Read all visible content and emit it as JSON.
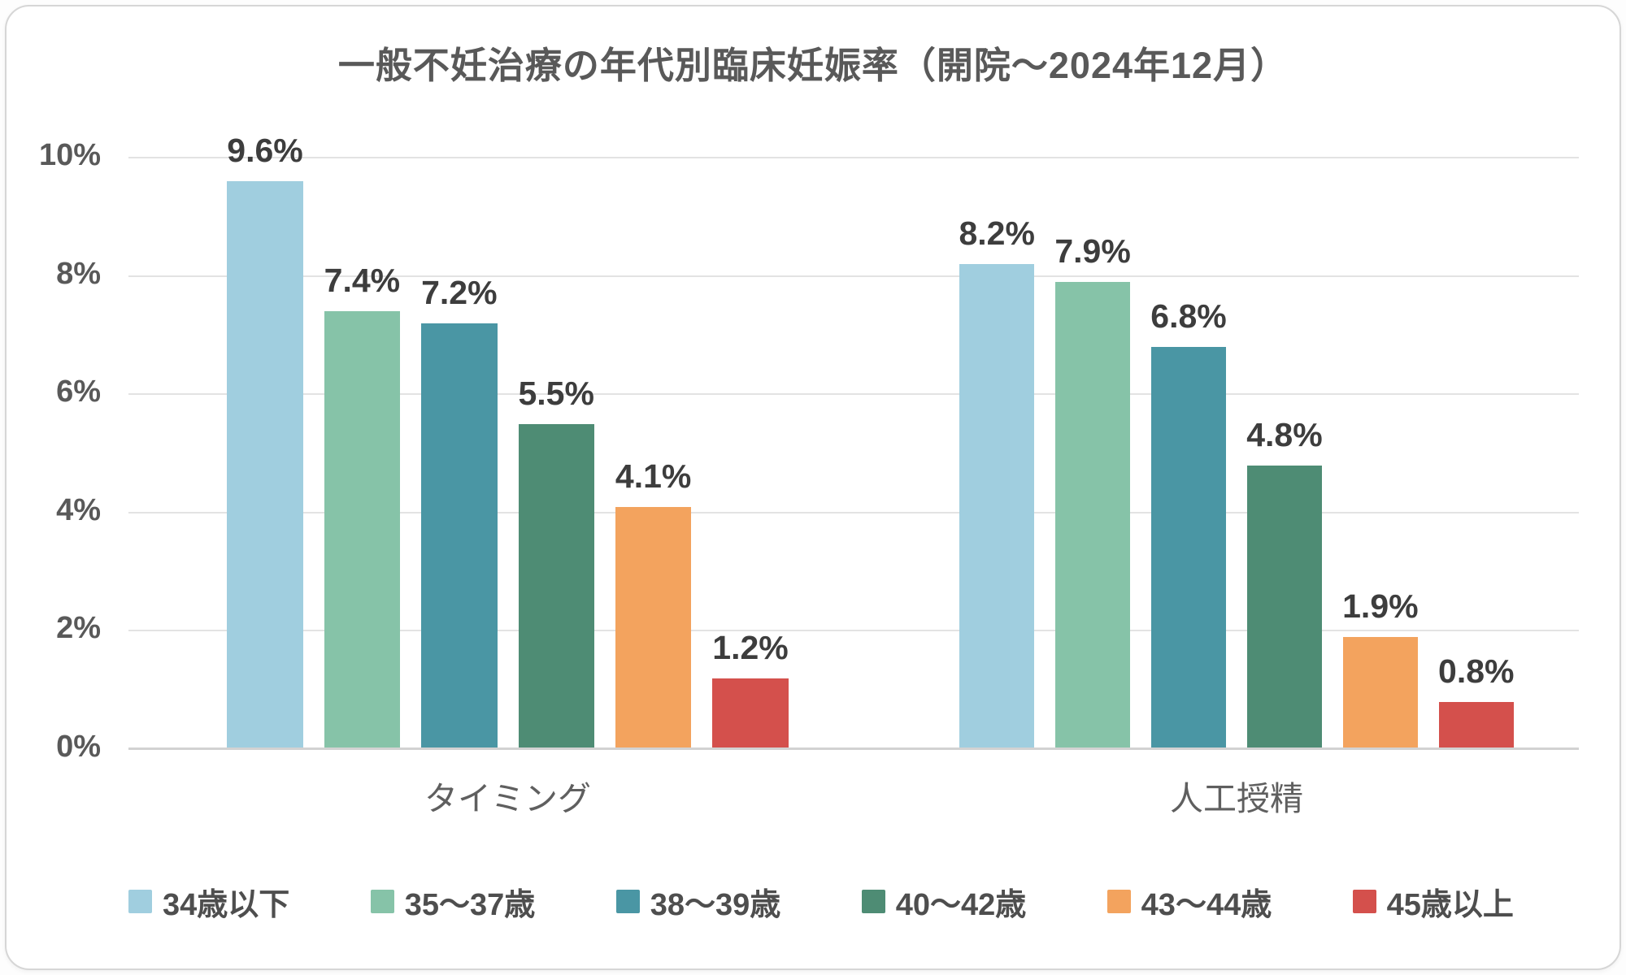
{
  "chart_data": {
    "type": "bar",
    "title": "一般不妊治療の年代別臨床妊娠率（開院〜2024年12月）",
    "categories": [
      "タイミング",
      "人工授精"
    ],
    "series": [
      {
        "name": "34歳以下",
        "color": "#a0cedf",
        "values": [
          9.6,
          8.2
        ]
      },
      {
        "name": "35〜37歳",
        "color": "#86c3a8",
        "values": [
          7.4,
          7.9
        ]
      },
      {
        "name": "38〜39歳",
        "color": "#4a96a4",
        "values": [
          7.2,
          6.8
        ]
      },
      {
        "name": "40〜42歳",
        "color": "#4e8c74",
        "values": [
          5.5,
          4.8
        ]
      },
      {
        "name": "43〜44歳",
        "color": "#f3a35e",
        "values": [
          4.1,
          1.9
        ]
      },
      {
        "name": "45歳以上",
        "color": "#d4504c",
        "values": [
          1.2,
          0.8
        ]
      }
    ],
    "data_labels": [
      [
        "9.6%",
        "7.4%",
        "7.2%",
        "5.5%",
        "4.1%",
        "1.2%"
      ],
      [
        "8.2%",
        "7.9%",
        "6.8%",
        "4.8%",
        "1.9%",
        "0.8%"
      ]
    ],
    "y_ticks": [
      "10%",
      "8%",
      "6%",
      "4%",
      "2%",
      "0%"
    ],
    "ylim": [
      0,
      10
    ],
    "grid": true,
    "legend_position": "bottom"
  }
}
